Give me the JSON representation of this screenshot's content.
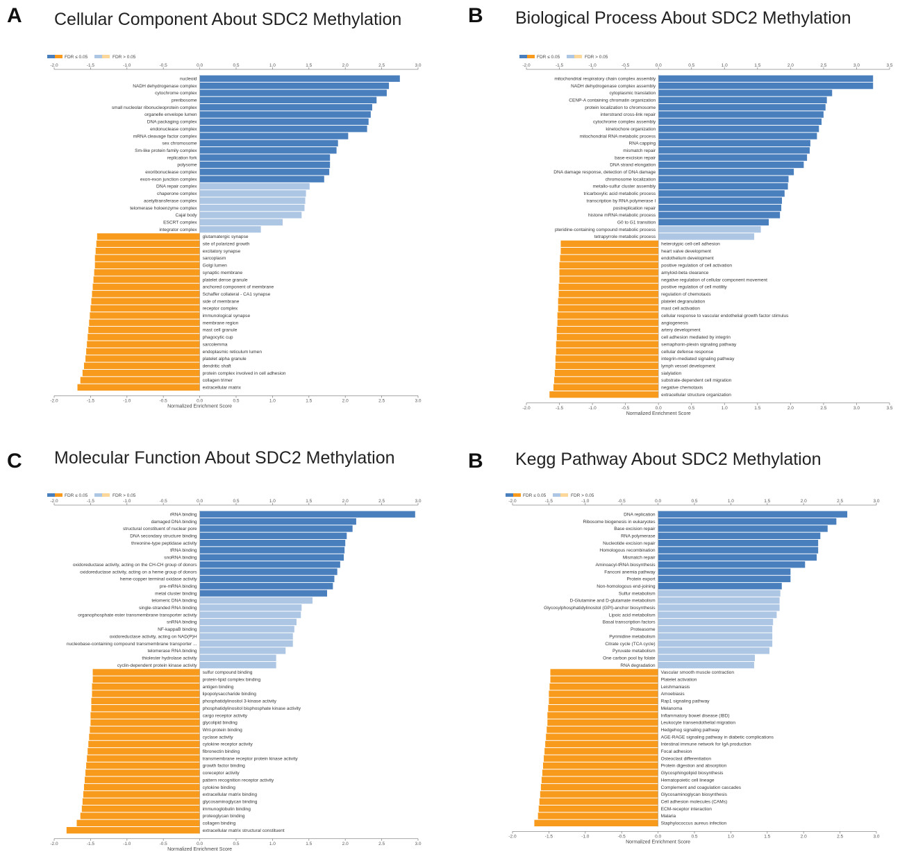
{
  "legend": {
    "sig_label": "FDR ≤ 0.05",
    "nonsig_label": "FDR > 0.05"
  },
  "colors": {
    "pos_sig": "#4a7fbe",
    "pos_nonsig": "#adc6e4",
    "neg_sig": "#f89a1c",
    "neg_nonsig": "#fbd89a"
  },
  "chart_data": [
    {
      "type": "bar",
      "panel_letter": "A",
      "title": "Cellular Component About SDC2 Methylation",
      "xlabel": "Normalized Enrichment Score",
      "xlim": [
        -2.0,
        3.0
      ],
      "ticks": [
        "-2.0",
        "-1.5",
        "-1.0",
        "-0.5",
        "0.0",
        "0.5",
        "1.0",
        "1.5",
        "2.0",
        "2.5",
        "3.0"
      ],
      "categories": [
        "nucleoid",
        "NADH dehydrogenase complex",
        "cytochrome complex",
        "preribosome",
        "small nucleolar ribonucleoprotein complex",
        "organelle envelope lumen",
        "DNA packaging complex",
        "endonuclease complex",
        "mRNA cleavage factor complex",
        "sex chromosome",
        "Sm-like protein family complex",
        "replication fork",
        "polysome",
        "exoribonuclease complex",
        "exon-exon junction complex",
        "DNA repair complex",
        "chaperone complex",
        "acetyltransferase complex",
        "telomerase holoenzyme complex",
        "Cajal body",
        "ESCRT complex",
        "integrator complex",
        "glutamatergic synapse",
        "site of polarized growth",
        "excitatory synapse",
        "sarcoplasm",
        "Golgi lumen",
        "synaptic membrane",
        "platelet dense granule",
        "anchored component of membrane",
        "Schaffer collateral - CA1 synapse",
        "side of membrane",
        "receptor complex",
        "immunological synapse",
        "membrane region",
        "mast cell granule",
        "phagocytic cup",
        "sarcolemma",
        "endoplasmic reticulum lumen",
        "platelet alpha granule",
        "dendritic shaft",
        "protein complex involved in cell adhesion",
        "collagen trimer",
        "extracellular matrix"
      ],
      "values": [
        2.75,
        2.6,
        2.57,
        2.43,
        2.37,
        2.35,
        2.32,
        2.3,
        2.04,
        1.9,
        1.88,
        1.79,
        1.79,
        1.78,
        1.71,
        1.51,
        1.46,
        1.45,
        1.44,
        1.4,
        1.14,
        0.84,
        -1.41,
        -1.42,
        -1.43,
        -1.44,
        -1.44,
        -1.45,
        -1.46,
        -1.47,
        -1.48,
        -1.49,
        -1.5,
        -1.51,
        -1.52,
        -1.53,
        -1.54,
        -1.55,
        -1.56,
        -1.57,
        -1.59,
        -1.61,
        -1.64,
        -1.68
      ],
      "significant": [
        true,
        true,
        true,
        true,
        true,
        true,
        true,
        true,
        true,
        true,
        true,
        true,
        true,
        true,
        true,
        false,
        false,
        false,
        false,
        false,
        false,
        false,
        true,
        true,
        true,
        true,
        true,
        true,
        true,
        true,
        true,
        true,
        true,
        true,
        true,
        true,
        true,
        true,
        true,
        true,
        true,
        true,
        true,
        true
      ]
    },
    {
      "type": "bar",
      "panel_letter": "B",
      "title": "Biological Process About SDC2 Methylation",
      "xlabel": "Normalized Enrichment Score",
      "xlim": [
        -2.0,
        3.5
      ],
      "ticks": [
        "-2.0",
        "-1.5",
        "-1.0",
        "-0.5",
        "0.0",
        "0.5",
        "1.0",
        "1.5",
        "2.0",
        "2.5",
        "3.0",
        "3.5"
      ],
      "categories": [
        "mitochondrial respiratory chain complex assembly",
        "NADH dehydrogenase complex assembly",
        "cytoplasmic translation",
        "CENP-A containing chromatin organization",
        "protein localization to chromosome",
        "interstrand cross-link repair",
        "cytochrome complex assembly",
        "kinetochore organization",
        "mitochondrial RNA metabolic process",
        "RNA capping",
        "mismatch repair",
        "base-excision repair",
        "DNA strand elongation",
        "DNA damage response, detection of DNA damage",
        "chromosome localization",
        "metallo-sulfur cluster assembly",
        "tricarboxylic acid metabolic process",
        "transcription by RNA polymerase I",
        "postreplication repair",
        "histone mRNA metabolic process",
        "G0 to G1 transition",
        "pteridine-containing compound metabolic process",
        "tetrapyrrole metabolic process",
        "heterotypic cell-cell adhesion",
        "heart valve development",
        "endothelium development",
        "positive regulation of cell activation",
        "amyloid-beta clearance",
        "negative regulation of cellular component movement",
        "positive regulation of cell motility",
        "regulation of chemotaxis",
        "platelet degranulation",
        "mast cell activation",
        "cellular response to vascular endothelial growth factor stimulus",
        "angiogenesis",
        "artery development",
        "cell adhesion mediated by integrin",
        "semaphorin-plexin signaling pathway",
        "cellular defense response",
        "integrin-mediated signaling pathway",
        "lymph vessel development",
        "sialylation",
        "substrate-dependent cell migration",
        "negative chemotaxis",
        "extracellular structure organization"
      ],
      "values": [
        3.25,
        3.25,
        2.63,
        2.55,
        2.53,
        2.5,
        2.47,
        2.43,
        2.4,
        2.3,
        2.29,
        2.25,
        2.2,
        2.05,
        1.97,
        1.96,
        1.91,
        1.87,
        1.86,
        1.84,
        1.67,
        1.55,
        1.45,
        -1.48,
        -1.48,
        -1.49,
        -1.5,
        -1.5,
        -1.5,
        -1.51,
        -1.51,
        -1.52,
        -1.52,
        -1.53,
        -1.53,
        -1.54,
        -1.54,
        -1.55,
        -1.55,
        -1.56,
        -1.56,
        -1.57,
        -1.58,
        -1.59,
        -1.65
      ],
      "significant": [
        true,
        true,
        true,
        true,
        true,
        true,
        true,
        true,
        true,
        true,
        true,
        true,
        true,
        true,
        true,
        true,
        true,
        true,
        true,
        true,
        true,
        false,
        false,
        true,
        true,
        true,
        true,
        true,
        true,
        true,
        true,
        true,
        true,
        true,
        true,
        true,
        true,
        true,
        true,
        true,
        true,
        true,
        true,
        true,
        true
      ]
    },
    {
      "type": "bar",
      "panel_letter": "C",
      "title": "Molecular Function About SDC2 Methylation",
      "xlabel": "Normalized Enrichment Score",
      "xlim": [
        -2.0,
        3.0
      ],
      "ticks": [
        "-2.0",
        "-1.5",
        "-1.0",
        "-0.5",
        "0.0",
        "0.5",
        "1.0",
        "1.5",
        "2.0",
        "2.5",
        "3.0"
      ],
      "categories": [
        "rRNA binding",
        "damaged DNA binding",
        "structural constituent of nuclear pore",
        "DNA secondary structure binding",
        "threonine-type peptidase activity",
        "tRNA binding",
        "snoRNA binding",
        "oxidoreductase activity, acting on the CH-CH group of donors",
        "oxidoreductase activity, acting on a heme group of donors",
        "heme-copper terminal oxidase activity",
        "pre-mRNA binding",
        "metal cluster binding",
        "telomeric DNA binding",
        "single-stranded RNA binding",
        "organophosphate ester transmembrane transporter activity",
        "snRNA binding",
        "NF-kappaB binding",
        "oxidoreductase activity, acting on NAD(P)H",
        "nucleobase-containing compound transmembrane transporter ...",
        "telomerase RNA binding",
        "thiolester hydrolase activity",
        "cyclin-dependent protein kinase activity",
        "sulfur compound binding",
        "protein-lipid complex binding",
        "antigen binding",
        "lipopolysaccharide binding",
        "phosphatidylinositol 3-kinase activity",
        "phosphatidylinositol bisphosphate kinase activity",
        "cargo receptor activity",
        "glycolipid binding",
        "Wnt-protein binding",
        "cyclase activity",
        "cytokine receptor activity",
        "fibronectin binding",
        "transmembrane receptor protein kinase activity",
        "growth factor binding",
        "coreceptor activity",
        "pattern recognition receptor activity",
        "cytokine binding",
        "extracellular matrix binding",
        "glycosaminoglycan binding",
        "immunoglobulin binding",
        "proteoglycan binding",
        "collagen binding",
        "extracellular matrix structural constituent"
      ],
      "values": [
        2.96,
        2.15,
        2.1,
        2.02,
        2.0,
        1.99,
        1.98,
        1.93,
        1.89,
        1.85,
        1.83,
        1.75,
        1.55,
        1.4,
        1.39,
        1.33,
        1.3,
        1.28,
        1.28,
        1.18,
        1.05,
        1.05,
        -1.47,
        -1.47,
        -1.48,
        -1.48,
        -1.49,
        -1.49,
        -1.5,
        -1.5,
        -1.51,
        -1.52,
        -1.53,
        -1.54,
        -1.55,
        -1.56,
        -1.57,
        -1.58,
        -1.59,
        -1.6,
        -1.61,
        -1.62,
        -1.64,
        -1.69,
        -1.83
      ],
      "significant": [
        true,
        true,
        true,
        true,
        true,
        true,
        true,
        true,
        true,
        true,
        true,
        true,
        false,
        false,
        false,
        false,
        false,
        false,
        false,
        false,
        false,
        false,
        true,
        true,
        true,
        true,
        true,
        true,
        true,
        true,
        true,
        true,
        true,
        true,
        true,
        true,
        true,
        true,
        true,
        true,
        true,
        true,
        true,
        true,
        true
      ]
    },
    {
      "type": "bar",
      "panel_letter": "B",
      "title": "Kegg Pathway About SDC2 Methylation",
      "xlabel": "Normalized Enrichment Score",
      "xlim": [
        -2.0,
        3.0
      ],
      "ticks": [
        "-2.0",
        "-1.5",
        "-1.0",
        "-0.5",
        "0.0",
        "0.5",
        "1.0",
        "1.5",
        "2.0",
        "2.5",
        "3.0"
      ],
      "categories": [
        "DNA replication",
        "Ribosome biogenesis in eukaryotes",
        "Base excision repair",
        "RNA polymerase",
        "Nucleotide excision repair",
        "Homologous recombination",
        "Mismatch repair",
        "Aminoacyl-tRNA biosynthesis",
        "Fanconi anemia pathway",
        "Protein export",
        "Non-homologous end-joining",
        "Sulfur metabolism",
        "D-Glutamine and D-glutamate metabolism",
        "Glycosylphosphatidylinositol (GPI)-anchor biosynthesis",
        "Lipoic acid metabolism",
        "Basal transcription factors",
        "Proteasome",
        "Pyrimidine metabolism",
        "Citrate cycle (TCA cycle)",
        "Pyruvate metabolism",
        "One carbon pool by folate",
        "RNA degradation",
        "Vascular smooth muscle contraction",
        "Platelet activation",
        "Leishmaniasis",
        "Amoebiasis",
        "Rap1 signaling pathway",
        "Melanoma",
        "Inflammatory bowel disease (IBD)",
        "Leukocyte transendothelial migration",
        "Hedgehog signaling pathway",
        "AGE-RAGE signaling pathway in diabetic complications",
        "Intestinal immune network for IgA production",
        "Focal adhesion",
        "Osteoclast differentiation",
        "Protein digestion and absorption",
        "Glycosphingolipid biosynthesis",
        "Hematopoietic cell lineage",
        "Complement and coagulation cascades",
        "Glycosaminoglycan biosynthesis",
        "Cell adhesion molecules (CAMs)",
        "ECM-receptor interaction",
        "Malaria",
        "Staphylococcus aureus infection"
      ],
      "values": [
        2.6,
        2.45,
        2.33,
        2.23,
        2.2,
        2.2,
        2.18,
        2.02,
        1.82,
        1.82,
        1.7,
        1.68,
        1.67,
        1.67,
        1.63,
        1.58,
        1.57,
        1.57,
        1.57,
        1.53,
        1.33,
        1.32,
        -1.48,
        -1.48,
        -1.49,
        -1.5,
        -1.5,
        -1.51,
        -1.52,
        -1.52,
        -1.53,
        -1.54,
        -1.55,
        -1.56,
        -1.57,
        -1.58,
        -1.59,
        -1.6,
        -1.61,
        -1.62,
        -1.63,
        -1.64,
        -1.65,
        -1.7
      ],
      "significant": [
        true,
        true,
        true,
        true,
        true,
        true,
        true,
        true,
        true,
        true,
        true,
        false,
        false,
        false,
        false,
        false,
        false,
        false,
        false,
        false,
        false,
        false,
        true,
        true,
        true,
        true,
        true,
        true,
        true,
        true,
        true,
        true,
        true,
        true,
        true,
        true,
        true,
        true,
        true,
        true,
        true,
        true,
        true,
        true
      ]
    }
  ]
}
